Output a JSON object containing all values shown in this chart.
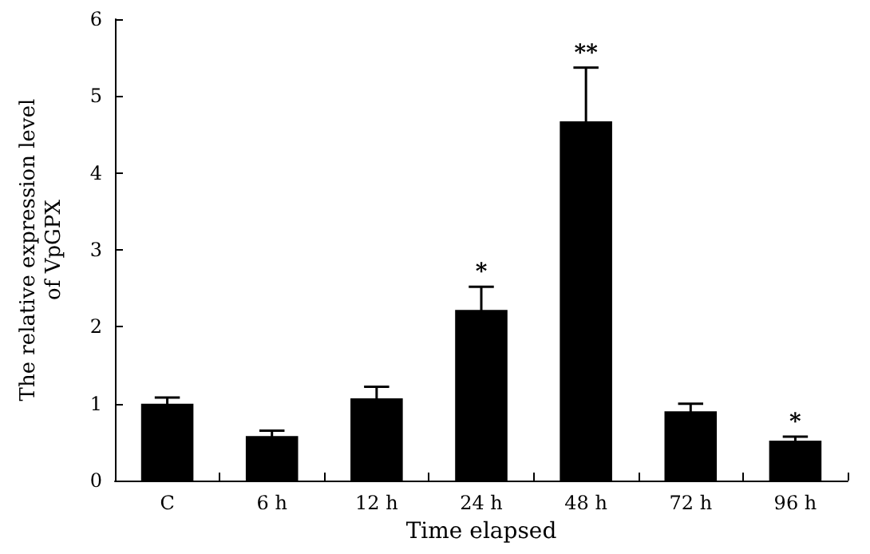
{
  "chart_data": {
    "type": "bar",
    "xlabel": "Time elapsed",
    "ylabel": "The relative expression level\nof VpGPX",
    "categories": [
      "C",
      "6 h",
      "12 h",
      "24 h",
      "48 h",
      "72 h",
      "96 h"
    ],
    "values": [
      1.0,
      0.58,
      1.07,
      2.22,
      4.67,
      0.9,
      0.52
    ],
    "errors": [
      0.08,
      0.07,
      0.15,
      0.3,
      0.7,
      0.1,
      0.05
    ],
    "value_labels": [
      null,
      null,
      null,
      "*",
      "**",
      null,
      "*"
    ],
    "color": "#000000",
    "ylim": [
      0,
      6
    ],
    "yticks": [
      0,
      1,
      2,
      3,
      4,
      5,
      6
    ],
    "grid": false
  }
}
